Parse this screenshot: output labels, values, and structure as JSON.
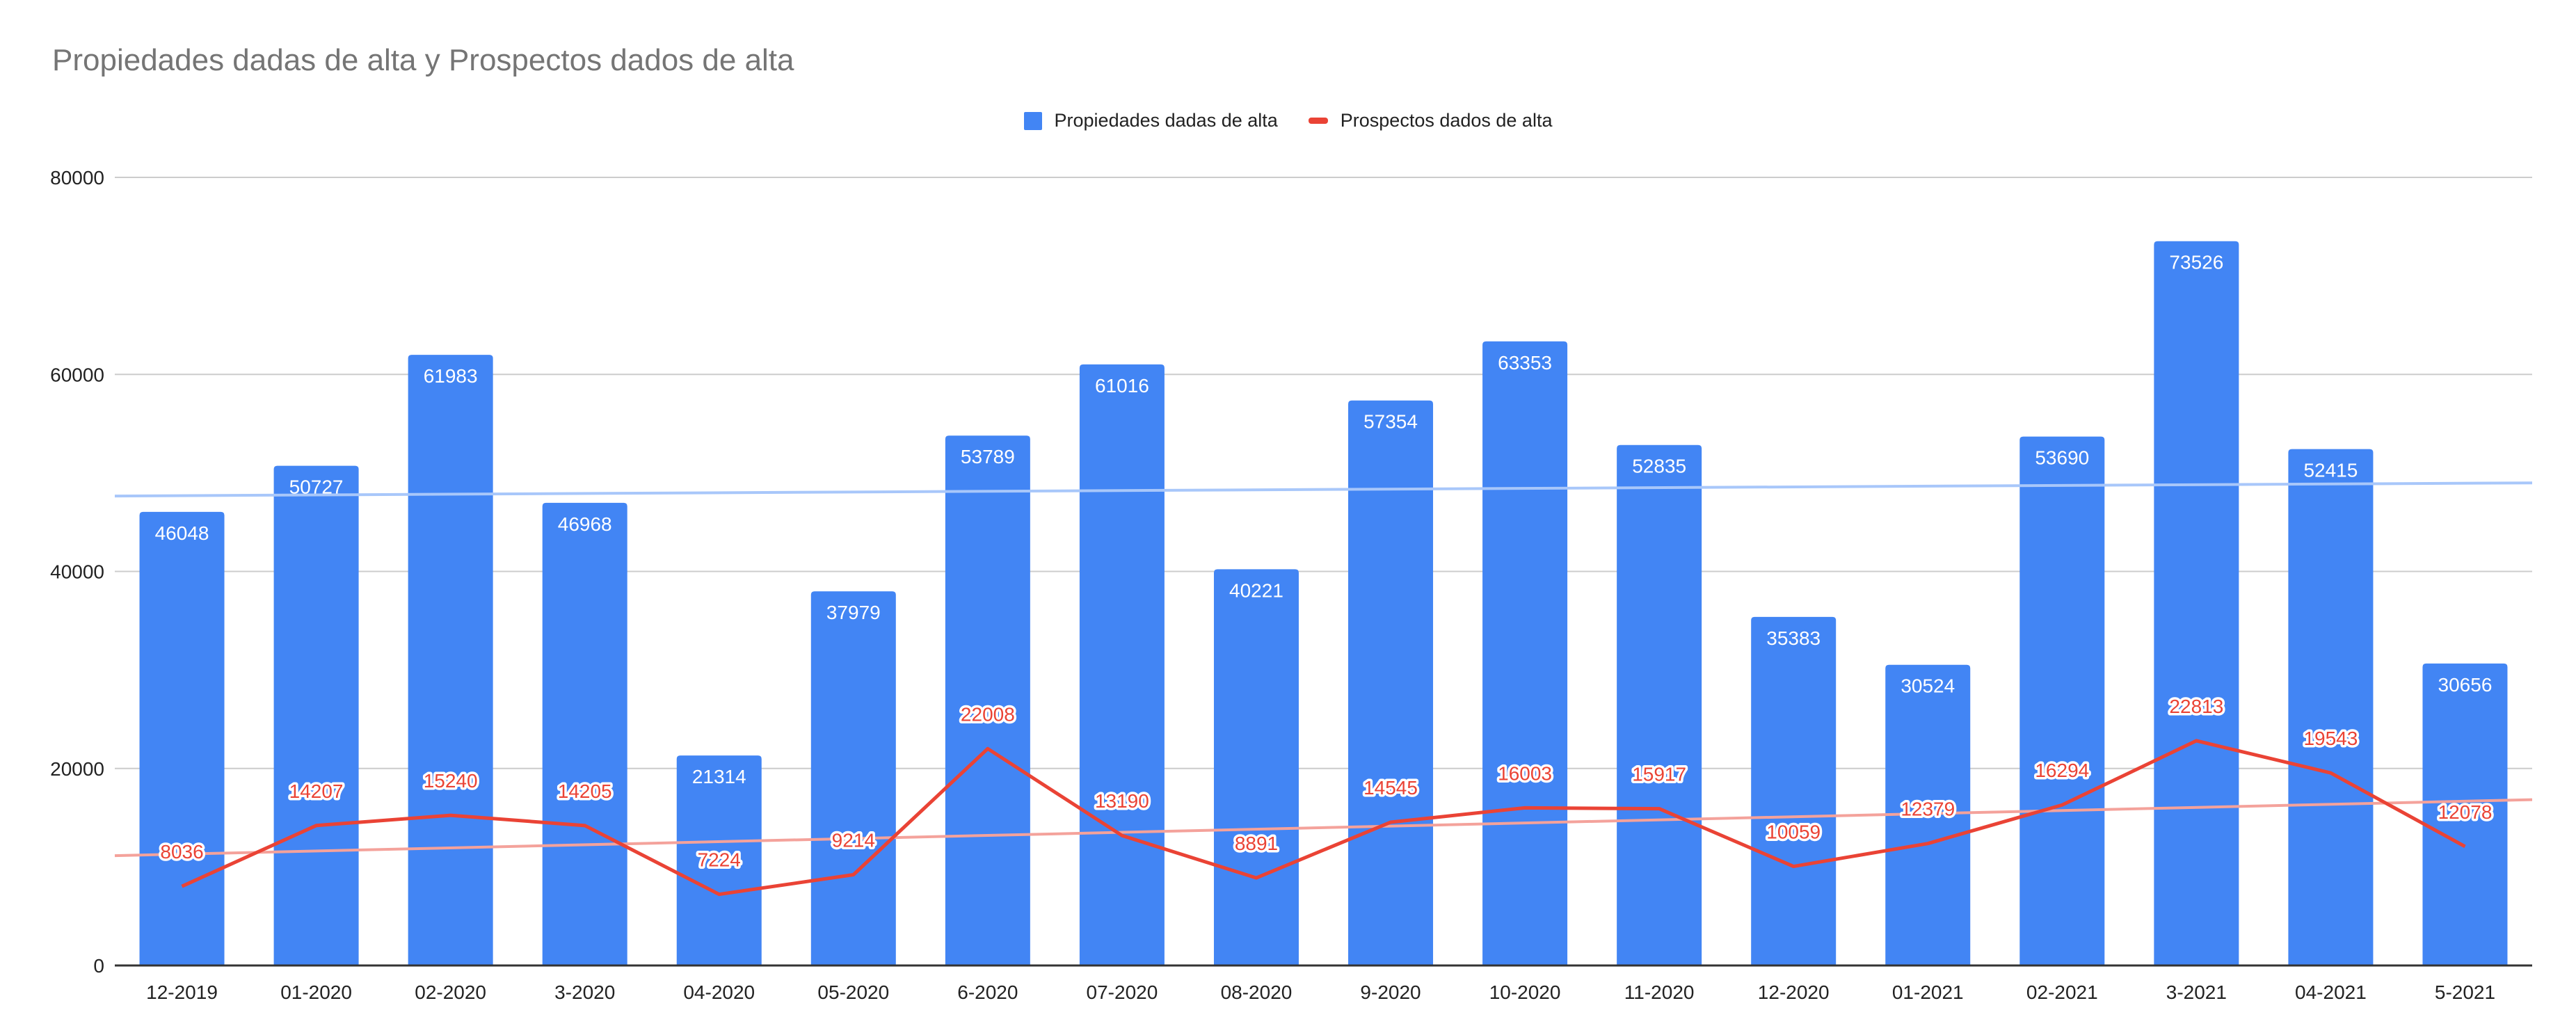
{
  "chart_data": {
    "type": "bar",
    "title": "Propiedades dadas de alta y Prospectos dados de alta",
    "xlabel": "",
    "ylabel": "",
    "ylim": [
      0,
      80000
    ],
    "yticks": [
      0,
      20000,
      40000,
      60000,
      80000
    ],
    "grid": true,
    "legend_position": "top-center",
    "categories": [
      "12-2019",
      "01-2020",
      "02-2020",
      "3-2020",
      "04-2020",
      "05-2020",
      "6-2020",
      "07-2020",
      "08-2020",
      "9-2020",
      "10-2020",
      "11-2020",
      "12-2020",
      "01-2021",
      "02-2021",
      "3-2021",
      "04-2021",
      "5-2021"
    ],
    "series": [
      {
        "name": "Propiedades dadas de alta",
        "kind": "bar",
        "color": "#4285F4",
        "trendline_color": "#A8C7FA",
        "values": [
          46048,
          50727,
          61983,
          46968,
          21314,
          37979,
          53789,
          61016,
          40221,
          57354,
          63353,
          52835,
          35383,
          30524,
          53690,
          73526,
          52415,
          30656
        ]
      },
      {
        "name": "Prospectos dados de alta",
        "kind": "line",
        "color": "#EA4335",
        "trendline_color": "#F4A29B",
        "values": [
          8036,
          14207,
          15240,
          14205,
          7224,
          9214,
          22008,
          13190,
          8891,
          14545,
          16003,
          15917,
          10059,
          12379,
          16294,
          22813,
          19543,
          12078
        ]
      }
    ]
  }
}
